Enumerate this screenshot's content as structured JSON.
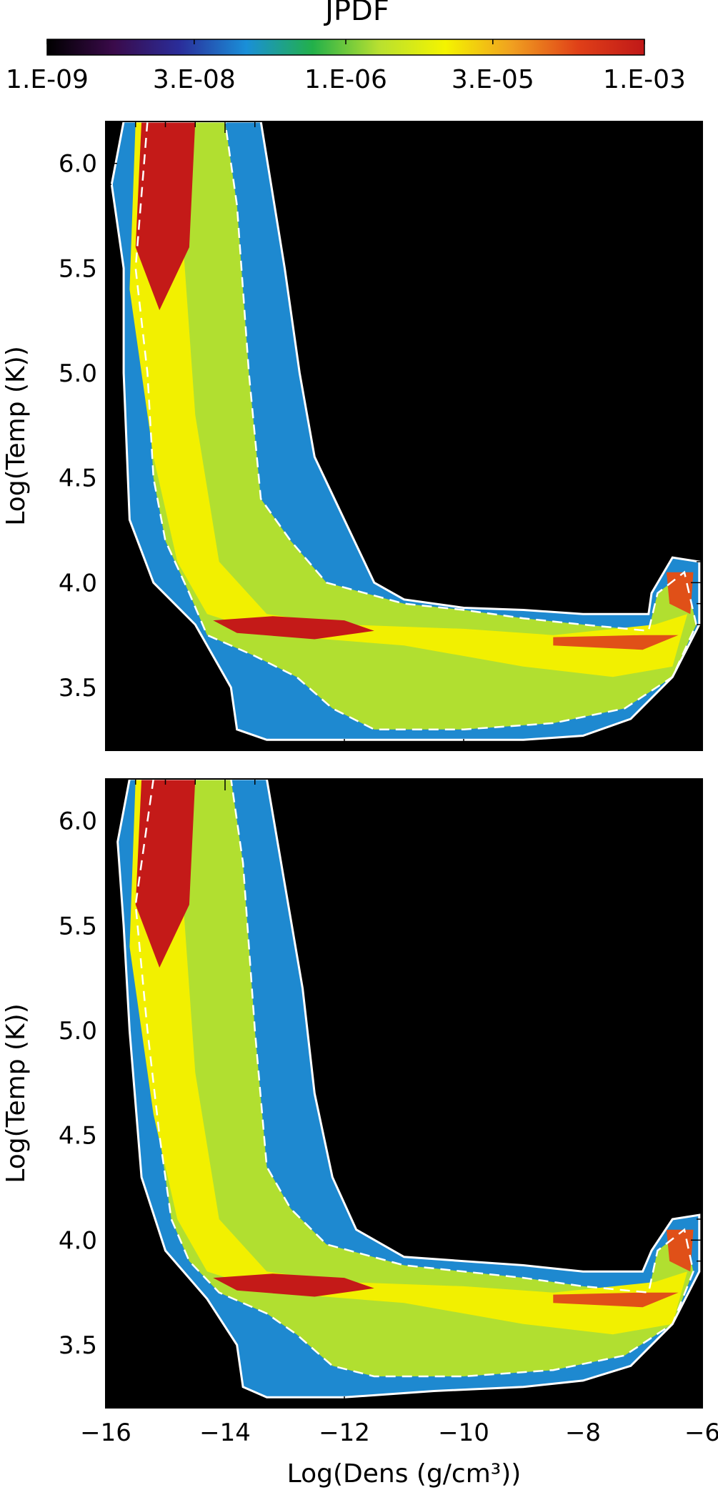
{
  "chart_data": {
    "type": "heatmap",
    "colorbar": {
      "title": "JPDF",
      "scale": "log",
      "range": [
        1e-09,
        0.001
      ],
      "tick_labels": [
        "1.E-09",
        "3.E-08",
        "1.E-06",
        "3.E-05",
        "1.E-03"
      ],
      "tick_values": [
        1e-09,
        3e-08,
        1e-06,
        3e-05,
        0.001
      ],
      "colormap": [
        "#000000",
        "#3a0a4a",
        "#2a2d9a",
        "#1a8fd8",
        "#22b04a",
        "#b8e030",
        "#f4f400",
        "#f0a020",
        "#e04018",
        "#c01818"
      ]
    },
    "panels": [
      {
        "id": "top",
        "xlabel": "",
        "ylabel": "Log(Temp (K))",
        "xlim": [
          -16,
          -6
        ],
        "ylim": [
          3.2,
          6.2
        ],
        "yticks": [
          3.5,
          4.0,
          4.5,
          5.0,
          5.5,
          6.0
        ],
        "ytick_labels": [
          "3.5",
          "4.0",
          "4.5",
          "5.0",
          "5.5",
          "6.0"
        ],
        "xtick_labels": [],
        "contour_solid": [
          [
            -15.7,
            6.2
          ],
          [
            -15.9,
            5.9
          ],
          [
            -15.7,
            5.5
          ],
          [
            -15.7,
            5.0
          ],
          [
            -15.6,
            4.3
          ],
          [
            -15.2,
            4.0
          ],
          [
            -14.5,
            3.8
          ],
          [
            -13.9,
            3.5
          ],
          [
            -13.8,
            3.3
          ],
          [
            -13.3,
            3.25
          ],
          [
            -12,
            3.25
          ],
          [
            -10.5,
            3.25
          ],
          [
            -9,
            3.25
          ],
          [
            -8,
            3.27
          ],
          [
            -7.2,
            3.35
          ],
          [
            -6.5,
            3.55
          ],
          [
            -6.05,
            3.8
          ],
          [
            -6.05,
            4.1
          ],
          [
            -6.5,
            4.12
          ],
          [
            -6.85,
            3.95
          ],
          [
            -6.9,
            3.85
          ],
          [
            -8,
            3.85
          ],
          [
            -9,
            3.87
          ],
          [
            -10,
            3.88
          ],
          [
            -11,
            3.92
          ],
          [
            -11.5,
            4.0
          ],
          [
            -12.0,
            4.3
          ],
          [
            -12.5,
            4.6
          ],
          [
            -12.75,
            5.0
          ],
          [
            -13.0,
            5.5
          ],
          [
            -13.4,
            6.2
          ]
        ],
        "contour_dashed": [
          [
            -15.3,
            6.2
          ],
          [
            -15.5,
            5.5
          ],
          [
            -15.3,
            5.0
          ],
          [
            -15.2,
            4.5
          ],
          [
            -15.0,
            4.2
          ],
          [
            -14.6,
            3.95
          ],
          [
            -14.3,
            3.75
          ],
          [
            -13.5,
            3.65
          ],
          [
            -12.8,
            3.55
          ],
          [
            -12.2,
            3.4
          ],
          [
            -11.5,
            3.3
          ],
          [
            -10,
            3.3
          ],
          [
            -8.5,
            3.33
          ],
          [
            -7.3,
            3.4
          ],
          [
            -6.5,
            3.55
          ],
          [
            -6.1,
            3.8
          ],
          [
            -6.3,
            4.05
          ],
          [
            -6.75,
            3.95
          ],
          [
            -6.9,
            3.77
          ],
          [
            -8,
            3.8
          ],
          [
            -9,
            3.83
          ],
          [
            -10,
            3.87
          ],
          [
            -11,
            3.9
          ],
          [
            -12.3,
            4.0
          ],
          [
            -12.9,
            4.2
          ],
          [
            -13.4,
            4.4
          ],
          [
            -13.6,
            5.0
          ],
          [
            -13.8,
            5.8
          ],
          [
            -14.0,
            6.2
          ]
        ]
      },
      {
        "id": "bottom",
        "xlabel": "Log(Dens (g/cm³))",
        "ylabel": "Log(Temp (K))",
        "xlim": [
          -16,
          -6
        ],
        "ylim": [
          3.2,
          6.2
        ],
        "xticks": [
          -16,
          -14,
          -12,
          -10,
          -8,
          -6
        ],
        "xtick_labels": [
          "−16",
          "−14",
          "−12",
          "−10",
          "−8",
          "−6"
        ],
        "yticks": [
          3.5,
          4.0,
          4.5,
          5.0,
          5.5,
          6.0
        ],
        "ytick_labels": [
          "3.5",
          "4.0",
          "4.5",
          "5.0",
          "5.5",
          "6.0"
        ],
        "contour_solid": [
          [
            -15.6,
            6.2
          ],
          [
            -15.8,
            5.9
          ],
          [
            -15.7,
            5.5
          ],
          [
            -15.6,
            5.0
          ],
          [
            -15.4,
            4.3
          ],
          [
            -15.0,
            3.95
          ],
          [
            -14.3,
            3.72
          ],
          [
            -13.8,
            3.5
          ],
          [
            -13.7,
            3.3
          ],
          [
            -13.3,
            3.25
          ],
          [
            -12,
            3.25
          ],
          [
            -10.5,
            3.28
          ],
          [
            -9,
            3.3
          ],
          [
            -8,
            3.33
          ],
          [
            -7.2,
            3.4
          ],
          [
            -6.5,
            3.6
          ],
          [
            -6.05,
            3.85
          ],
          [
            -6.05,
            4.12
          ],
          [
            -6.5,
            4.1
          ],
          [
            -6.85,
            3.95
          ],
          [
            -7.0,
            3.85
          ],
          [
            -8,
            3.85
          ],
          [
            -9,
            3.88
          ],
          [
            -10,
            3.9
          ],
          [
            -11,
            3.92
          ],
          [
            -11.8,
            4.05
          ],
          [
            -12.2,
            4.3
          ],
          [
            -12.5,
            4.7
          ],
          [
            -12.7,
            5.2
          ],
          [
            -13.0,
            5.7
          ],
          [
            -13.3,
            6.2
          ]
        ],
        "contour_dashed": [
          [
            -15.2,
            6.2
          ],
          [
            -15.5,
            5.6
          ],
          [
            -15.3,
            5.0
          ],
          [
            -15.1,
            4.5
          ],
          [
            -14.9,
            4.1
          ],
          [
            -14.6,
            3.9
          ],
          [
            -14.1,
            3.75
          ],
          [
            -13.3,
            3.65
          ],
          [
            -12.8,
            3.55
          ],
          [
            -12.2,
            3.4
          ],
          [
            -11.5,
            3.35
          ],
          [
            -10,
            3.35
          ],
          [
            -8.5,
            3.38
          ],
          [
            -7.3,
            3.45
          ],
          [
            -6.5,
            3.6
          ],
          [
            -6.15,
            3.85
          ],
          [
            -6.3,
            4.05
          ],
          [
            -6.75,
            3.95
          ],
          [
            -6.9,
            3.75
          ],
          [
            -8,
            3.78
          ],
          [
            -9,
            3.82
          ],
          [
            -10,
            3.85
          ],
          [
            -11,
            3.88
          ],
          [
            -12.3,
            3.98
          ],
          [
            -12.9,
            4.15
          ],
          [
            -13.3,
            4.35
          ],
          [
            -13.5,
            5.0
          ],
          [
            -13.7,
            5.8
          ],
          [
            -13.9,
            6.2
          ]
        ]
      }
    ]
  }
}
